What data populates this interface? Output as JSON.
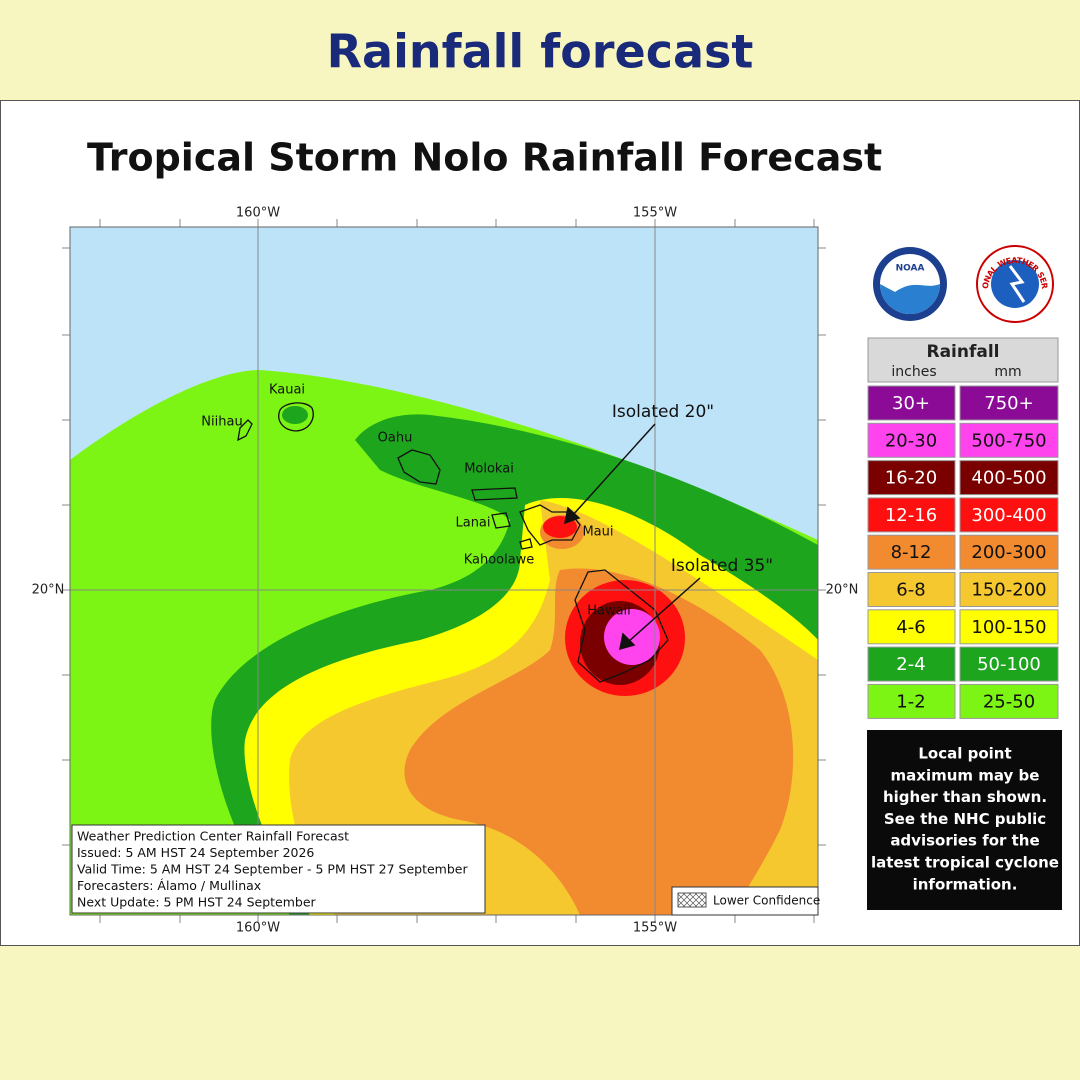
{
  "header": {
    "title": "Rainfall forecast"
  },
  "map": {
    "title": "Tropical Storm Nolo Rainfall Forecast",
    "lon_labels": [
      "160°W",
      "155°W"
    ],
    "lat_labels": [
      "20°N"
    ],
    "islands": [
      "Kauai",
      "Niihau",
      "Oahu",
      "Molokai",
      "Lanai",
      "Maui",
      "Kahoolawe",
      "Hawaii"
    ],
    "annotations": [
      "Isolated 20\"",
      "Isolated 35\""
    ],
    "info_box": [
      "Weather Prediction Center Rainfall Forecast",
      "Issued: 5 AM HST 24 September 2026",
      "Valid Time: 5 AM HST 24 September - 5 PM HST 27 September",
      "Forecasters: Álamo / Mullinax",
      "Next Update: 5 PM HST 24 September"
    ],
    "confidence_label": "Lower Confidence"
  },
  "logos": {
    "noaa": "NOAA",
    "nws": "NATIONAL WEATHER SERVICE"
  },
  "legend": {
    "title": "Rainfall",
    "units": [
      "inches",
      "mm"
    ],
    "rows": [
      {
        "inches": "30+",
        "mm": "750+",
        "color": "#8b0a96"
      },
      {
        "inches": "20-30",
        "mm": "500-750",
        "color": "#ff44ee"
      },
      {
        "inches": "16-20",
        "mm": "400-500",
        "color": "#7a0000"
      },
      {
        "inches": "12-16",
        "mm": "300-400",
        "color": "#ff1010"
      },
      {
        "inches": "8-12",
        "mm": "200-300",
        "color": "#f28a30"
      },
      {
        "inches": "6-8",
        "mm": "150-200",
        "color": "#f5c830"
      },
      {
        "inches": "4-6",
        "mm": "100-150",
        "color": "#ffff00"
      },
      {
        "inches": "2-4",
        "mm": "50-100",
        "color": "#1ea51e"
      },
      {
        "inches": "1-2",
        "mm": "25-50",
        "color": "#7df514"
      }
    ]
  },
  "note": [
    "Local point",
    "maximum may be",
    "higher than shown.",
    "See the NHC public",
    "advisories for the",
    "latest tropical cyclone",
    "information."
  ]
}
